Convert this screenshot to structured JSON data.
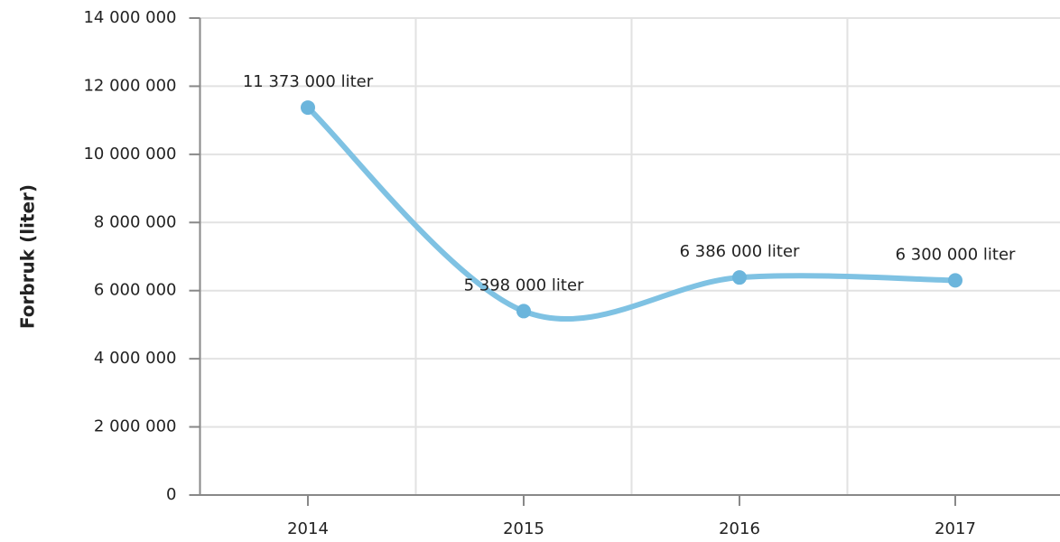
{
  "chart_data": {
    "type": "line",
    "y_label": "Forbruk (liter)",
    "categories": [
      "2014",
      "2015",
      "2016",
      "2017"
    ],
    "series": [
      {
        "name": "Forbruk",
        "color": "#7fc2e3",
        "marker_color": "#6bb5dc",
        "values": [
          11373000,
          5398000,
          6386000,
          6300000
        ],
        "value_labels": [
          "11 373 000 liter",
          "5 398 000 liter",
          "6 386 000 liter",
          "6 300 000 liter"
        ]
      }
    ],
    "ylim": [
      0,
      14000000
    ],
    "yticks": [
      0,
      {
        "value": 2000000,
        "label": "2 000 000"
      },
      {
        "value": 4000000,
        "label": "4 000 000"
      },
      {
        "value": 6000000,
        "label": "6 000 000"
      },
      {
        "value": 8000000,
        "label": "8 000 000"
      },
      {
        "value": 10000000,
        "label": "10 000 000"
      },
      {
        "value": 12000000,
        "label": "12 000 000"
      },
      {
        "value": 14000000,
        "label": "14 000 000"
      }
    ],
    "grid": true,
    "smooth": true
  }
}
